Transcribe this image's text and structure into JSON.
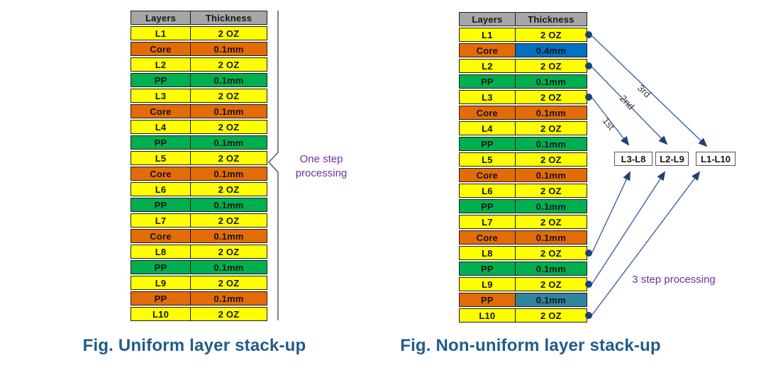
{
  "colors": {
    "yellow": "#FFFF00",
    "orange": "#E36C09",
    "green": "#00B050",
    "blue": "#0070C0",
    "teal": "#31859C",
    "header_gray": "#A6A6A6",
    "purple": "#7030A0",
    "caption_blue": "#1F5C8B",
    "arrow_line": "#3B62A9",
    "arrow_dark": "#1F4077",
    "brace_gray": "#4d4d4d"
  },
  "left_figure": {
    "caption": "Fig. Uniform layer stack-up",
    "annotation_line1": "One step",
    "annotation_line2": "processing",
    "table": {
      "headers": [
        "Layers",
        "Thickness"
      ],
      "rows": [
        {
          "layer": "L1",
          "value": "2 OZ",
          "label_color": "yellow",
          "value_color": "yellow"
        },
        {
          "layer": "Core",
          "value": "0.1mm",
          "label_color": "orange",
          "value_color": "orange"
        },
        {
          "layer": "L2",
          "value": "2 OZ",
          "label_color": "yellow",
          "value_color": "yellow"
        },
        {
          "layer": "PP",
          "value": "0.1mm",
          "label_color": "green",
          "value_color": "green"
        },
        {
          "layer": "L3",
          "value": "2 OZ",
          "label_color": "yellow",
          "value_color": "yellow"
        },
        {
          "layer": "Core",
          "value": "0.1mm",
          "label_color": "orange",
          "value_color": "orange"
        },
        {
          "layer": "L4",
          "value": "2 OZ",
          "label_color": "yellow",
          "value_color": "yellow"
        },
        {
          "layer": "PP",
          "value": "0.1mm",
          "label_color": "green",
          "value_color": "green"
        },
        {
          "layer": "L5",
          "value": "2 OZ",
          "label_color": "yellow",
          "value_color": "yellow"
        },
        {
          "layer": "Core",
          "value": "0.1mm",
          "label_color": "orange",
          "value_color": "orange"
        },
        {
          "layer": "L6",
          "value": "2 OZ",
          "label_color": "yellow",
          "value_color": "yellow"
        },
        {
          "layer": "PP",
          "value": "0.1mm",
          "label_color": "green",
          "value_color": "green"
        },
        {
          "layer": "L7",
          "value": "2 OZ",
          "label_color": "yellow",
          "value_color": "yellow"
        },
        {
          "layer": "Core",
          "value": "0.1mm",
          "label_color": "orange",
          "value_color": "orange"
        },
        {
          "layer": "L8",
          "value": "2 OZ",
          "label_color": "yellow",
          "value_color": "yellow"
        },
        {
          "layer": "PP",
          "value": "0.1mm",
          "label_color": "green",
          "value_color": "green"
        },
        {
          "layer": "L9",
          "value": "2 OZ",
          "label_color": "yellow",
          "value_color": "yellow"
        },
        {
          "layer": "PP",
          "value": "0.1mm",
          "label_color": "orange",
          "value_color": "orange"
        },
        {
          "layer": "L10",
          "value": "2 OZ",
          "label_color": "yellow",
          "value_color": "yellow"
        }
      ]
    }
  },
  "right_figure": {
    "caption": "Fig. Non-uniform layer stack-up",
    "annotation": "3 step processing",
    "step_labels": [
      "1st",
      "2nd",
      "3rd"
    ],
    "group_boxes": [
      "L3-L8",
      "L2-L9",
      "L1-L10"
    ],
    "table": {
      "headers": [
        "Layers",
        "Thickness"
      ],
      "rows": [
        {
          "layer": "L1",
          "value": "2 OZ",
          "label_color": "yellow",
          "value_color": "yellow",
          "dot": true
        },
        {
          "layer": "Core",
          "value": "0.4mm",
          "label_color": "orange",
          "value_color": "blue"
        },
        {
          "layer": "L2",
          "value": "2 OZ",
          "label_color": "yellow",
          "value_color": "yellow",
          "dot": true
        },
        {
          "layer": "PP",
          "value": "0.1mm",
          "label_color": "green",
          "value_color": "green"
        },
        {
          "layer": "L3",
          "value": "2 OZ",
          "label_color": "yellow",
          "value_color": "yellow",
          "dot": true
        },
        {
          "layer": "Core",
          "value": "0.1mm",
          "label_color": "orange",
          "value_color": "orange"
        },
        {
          "layer": "L4",
          "value": "2 OZ",
          "label_color": "yellow",
          "value_color": "yellow"
        },
        {
          "layer": "PP",
          "value": "0.1mm",
          "label_color": "green",
          "value_color": "green"
        },
        {
          "layer": "L5",
          "value": "2 OZ",
          "label_color": "yellow",
          "value_color": "yellow"
        },
        {
          "layer": "Core",
          "value": "0.1mm",
          "label_color": "orange",
          "value_color": "orange"
        },
        {
          "layer": "L6",
          "value": "2 OZ",
          "label_color": "yellow",
          "value_color": "yellow"
        },
        {
          "layer": "PP",
          "value": "0.1mm",
          "label_color": "green",
          "value_color": "green"
        },
        {
          "layer": "L7",
          "value": "2 OZ",
          "label_color": "yellow",
          "value_color": "yellow"
        },
        {
          "layer": "Core",
          "value": "0.1mm",
          "label_color": "orange",
          "value_color": "orange"
        },
        {
          "layer": "L8",
          "value": "2 OZ",
          "label_color": "yellow",
          "value_color": "yellow",
          "dot": true
        },
        {
          "layer": "PP",
          "value": "0.1mm",
          "label_color": "green",
          "value_color": "green"
        },
        {
          "layer": "L9",
          "value": "2 OZ",
          "label_color": "yellow",
          "value_color": "yellow",
          "dot": true
        },
        {
          "layer": "PP",
          "value": "0.1mm",
          "label_color": "orange",
          "value_color": "teal"
        },
        {
          "layer": "L10",
          "value": "2 OZ",
          "label_color": "yellow",
          "value_color": "yellow",
          "dot": true
        }
      ]
    }
  }
}
